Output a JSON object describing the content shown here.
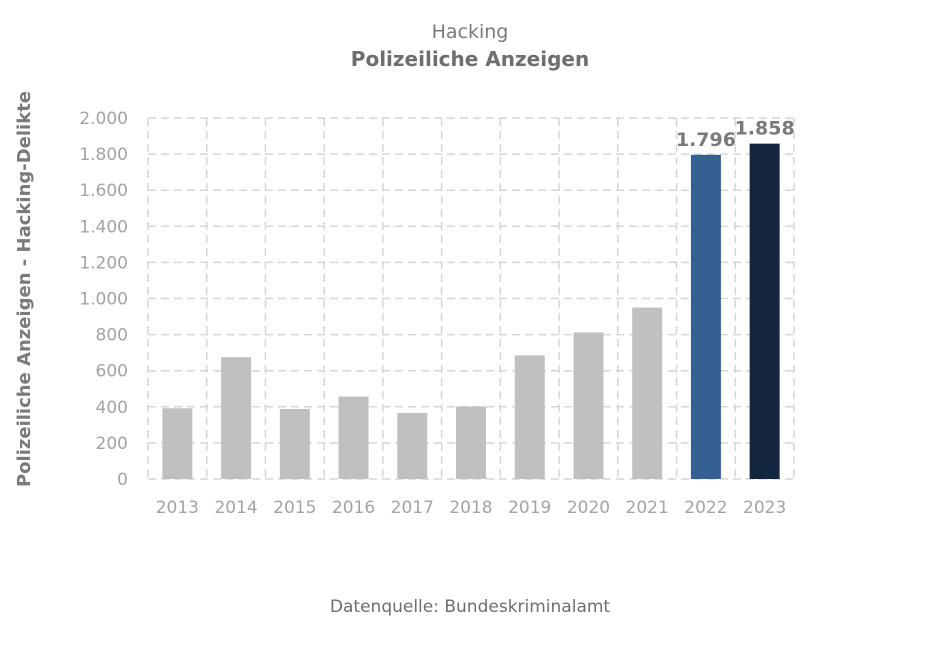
{
  "chart_data": {
    "type": "bar",
    "title": "Hacking",
    "subtitle": "Polizeiliche Anzeigen",
    "xlabel": "",
    "ylabel": "Polizeiliche Anzeigen - Hacking-Delikte",
    "categories": [
      "2013",
      "2014",
      "2015",
      "2016",
      "2017",
      "2018",
      "2019",
      "2020",
      "2021",
      "2022",
      "2023"
    ],
    "values": [
      392,
      675,
      388,
      457,
      366,
      402,
      685,
      812,
      950,
      1796,
      1858
    ],
    "bar_colors": [
      "#c0c0c0",
      "#c0c0c0",
      "#c0c0c0",
      "#c0c0c0",
      "#c0c0c0",
      "#c0c0c0",
      "#c0c0c0",
      "#c0c0c0",
      "#c0c0c0",
      "#336091",
      "#13253f"
    ],
    "data_labels": [
      "",
      "",
      "",
      "",
      "",
      "",
      "",
      "",
      "",
      "1.796",
      "1.858"
    ],
    "ylim": [
      0,
      2000
    ],
    "yticks": [
      0,
      200,
      400,
      600,
      800,
      1000,
      1200,
      1400,
      1600,
      1800,
      2000
    ],
    "ytick_labels": [
      "0",
      "200",
      "400",
      "600",
      "800",
      "1.000",
      "1.200",
      "1.400",
      "1.600",
      "1.800",
      "2.000"
    ],
    "grid": true,
    "source_note": "Datenquelle: Bundeskriminalamt"
  }
}
